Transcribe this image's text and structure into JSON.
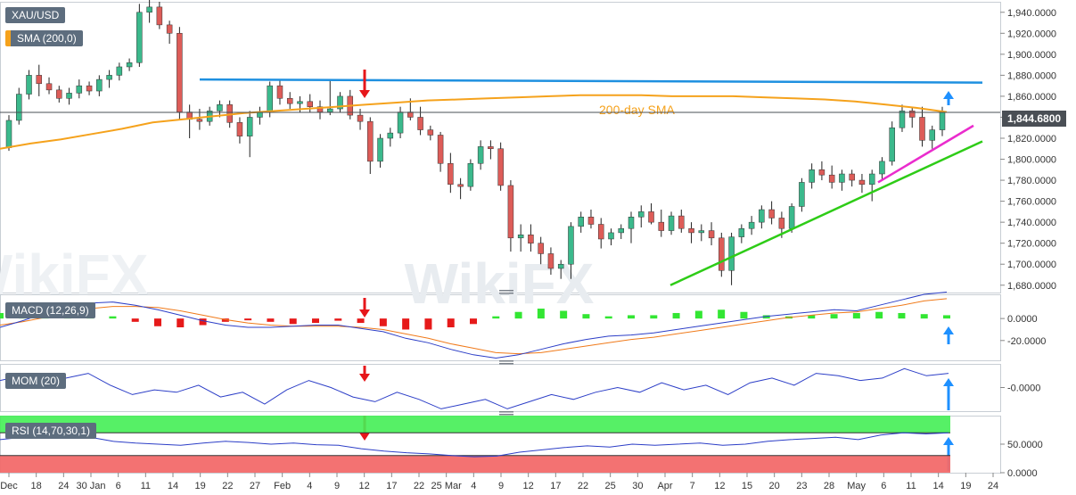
{
  "symbol": "XAU/USD",
  "indicators": {
    "sma": "SMA (200,0)",
    "macd": "MACD (12,26,9)",
    "mom": "MOM (20)",
    "rsi": "RSI (14,70,30,1)"
  },
  "annotations": {
    "sma_label": "200-day SMA",
    "current_price": "1,844.6800"
  },
  "colors": {
    "up": "#3bb98c",
    "down": "#dd5c58",
    "sma": "#f5a21c",
    "resistance": "#1e90e0",
    "support": "#2ecc17",
    "short_support": "#ea2ccd",
    "macd_line": "#2c3ec7",
    "signal_line": "#f07a1a",
    "hist_pos": "#33e633",
    "hist_neg": "#e61a1a",
    "rsi_over": "#44ee55",
    "rsi_under": "#f26a6a",
    "arrow_red": "#e6161a",
    "arrow_blue": "#1e90ff"
  },
  "chart_data": [
    {
      "type": "candlestick",
      "name": "price",
      "y_ticks": [
        "1,940.0000",
        "1,920.0000",
        "1,900.0000",
        "1,880.0000",
        "1,860.0000",
        "1,840.0000",
        "1,820.0000",
        "1,800.0000",
        "1,780.0000",
        "1,760.0000",
        "1,740.0000",
        "1,720.0000",
        "1,700.0000",
        "1,680.0000"
      ],
      "ylim": [
        1673,
        1950
      ],
      "candles": [
        [
          1811,
          1842,
          1808,
          1837
        ],
        [
          1837,
          1868,
          1833,
          1862
        ],
        [
          1862,
          1885,
          1857,
          1880
        ],
        [
          1880,
          1890,
          1860,
          1872
        ],
        [
          1872,
          1878,
          1862,
          1866
        ],
        [
          1866,
          1870,
          1854,
          1858
        ],
        [
          1858,
          1868,
          1852,
          1863
        ],
        [
          1863,
          1876,
          1858,
          1870
        ],
        [
          1870,
          1874,
          1861,
          1865
        ],
        [
          1865,
          1880,
          1860,
          1876
        ],
        [
          1876,
          1885,
          1868,
          1880
        ],
        [
          1880,
          1892,
          1875,
          1888
        ],
        [
          1888,
          1896,
          1884,
          1892
        ],
        [
          1892,
          1948,
          1888,
          1940
        ],
        [
          1940,
          1960,
          1930,
          1945
        ],
        [
          1945,
          1950,
          1924,
          1928
        ],
        [
          1928,
          1932,
          1910,
          1920
        ],
        [
          1920,
          1926,
          1838,
          1845
        ],
        [
          1845,
          1852,
          1820,
          1838
        ],
        [
          1838,
          1848,
          1828,
          1836
        ],
        [
          1836,
          1850,
          1832,
          1846
        ],
        [
          1846,
          1856,
          1840,
          1852
        ],
        [
          1852,
          1856,
          1830,
          1835
        ],
        [
          1835,
          1840,
          1815,
          1822
        ],
        [
          1822,
          1846,
          1802,
          1840
        ],
        [
          1840,
          1850,
          1833,
          1845
        ],
        [
          1845,
          1874,
          1840,
          1870
        ],
        [
          1870,
          1876,
          1852,
          1858
        ],
        [
          1858,
          1864,
          1848,
          1853
        ],
        [
          1853,
          1860,
          1845,
          1855
        ],
        [
          1855,
          1862,
          1845,
          1850
        ],
        [
          1850,
          1856,
          1838,
          1845
        ],
        [
          1845,
          1876,
          1842,
          1848
        ],
        [
          1848,
          1864,
          1845,
          1860
        ],
        [
          1860,
          1866,
          1838,
          1842
        ],
        [
          1842,
          1848,
          1828,
          1836
        ],
        [
          1836,
          1840,
          1786,
          1798
        ],
        [
          1798,
          1824,
          1792,
          1820
        ],
        [
          1820,
          1830,
          1812,
          1825
        ],
        [
          1825,
          1850,
          1820,
          1845
        ],
        [
          1845,
          1858,
          1837,
          1840
        ],
        [
          1840,
          1850,
          1823,
          1828
        ],
        [
          1828,
          1832,
          1818,
          1823
        ],
        [
          1823,
          1826,
          1788,
          1796
        ],
        [
          1796,
          1806,
          1768,
          1776
        ],
        [
          1776,
          1782,
          1762,
          1774
        ],
        [
          1774,
          1800,
          1770,
          1796
        ],
        [
          1796,
          1818,
          1790,
          1812
        ],
        [
          1812,
          1818,
          1800,
          1810
        ],
        [
          1810,
          1816,
          1770,
          1775
        ],
        [
          1775,
          1780,
          1712,
          1725
        ],
        [
          1725,
          1738,
          1712,
          1728
        ],
        [
          1728,
          1738,
          1712,
          1720
        ],
        [
          1720,
          1726,
          1700,
          1710
        ],
        [
          1710,
          1716,
          1690,
          1696
        ],
        [
          1696,
          1704,
          1686,
          1700
        ],
        [
          1700,
          1740,
          1686,
          1736
        ],
        [
          1736,
          1750,
          1730,
          1745
        ],
        [
          1745,
          1752,
          1734,
          1738
        ],
        [
          1738,
          1744,
          1715,
          1724
        ],
        [
          1724,
          1734,
          1718,
          1730
        ],
        [
          1730,
          1738,
          1724,
          1734
        ],
        [
          1734,
          1750,
          1720,
          1745
        ],
        [
          1745,
          1756,
          1735,
          1750
        ],
        [
          1750,
          1758,
          1738,
          1740
        ],
        [
          1740,
          1752,
          1726,
          1732
        ],
        [
          1732,
          1750,
          1728,
          1746
        ],
        [
          1746,
          1752,
          1730,
          1734
        ],
        [
          1734,
          1740,
          1720,
          1730
        ],
        [
          1730,
          1738,
          1722,
          1732
        ],
        [
          1732,
          1740,
          1718,
          1725
        ],
        [
          1725,
          1730,
          1688,
          1694
        ],
        [
          1694,
          1730,
          1680,
          1726
        ],
        [
          1726,
          1738,
          1720,
          1734
        ],
        [
          1734,
          1746,
          1728,
          1740
        ],
        [
          1740,
          1756,
          1734,
          1752
        ],
        [
          1752,
          1760,
          1738,
          1744
        ],
        [
          1744,
          1750,
          1725,
          1734
        ],
        [
          1734,
          1758,
          1730,
          1755
        ],
        [
          1755,
          1782,
          1750,
          1778
        ],
        [
          1778,
          1796,
          1772,
          1790
        ],
        [
          1790,
          1798,
          1780,
          1785
        ],
        [
          1785,
          1794,
          1772,
          1778
        ],
        [
          1778,
          1790,
          1770,
          1786
        ],
        [
          1786,
          1790,
          1774,
          1780
        ],
        [
          1780,
          1786,
          1768,
          1776
        ],
        [
          1776,
          1790,
          1760,
          1786
        ],
        [
          1786,
          1802,
          1780,
          1798
        ],
        [
          1798,
          1836,
          1794,
          1830
        ],
        [
          1830,
          1852,
          1826,
          1846
        ],
        [
          1846,
          1850,
          1830,
          1840
        ],
        [
          1840,
          1850,
          1812,
          1818
        ],
        [
          1818,
          1832,
          1810,
          1828
        ],
        [
          1828,
          1850,
          1822,
          1845
        ]
      ]
    },
    {
      "type": "line",
      "name": "SMA (200,0)",
      "values": [
        1810,
        1815,
        1819,
        1824,
        1829,
        1835,
        1838,
        1841,
        1844,
        1846,
        1848,
        1850,
        1852,
        1854,
        1856,
        1857,
        1858,
        1859,
        1860,
        1861,
        1861,
        1861,
        1860,
        1860,
        1860,
        1859,
        1858,
        1857,
        1855,
        1852,
        1849,
        1845
      ]
    },
    {
      "type": "line",
      "name": "MACD (12,26,9)",
      "y_ticks": [
        "0.0000",
        "-20.0000"
      ],
      "ylim": [
        -38,
        22
      ],
      "macd": [
        -8,
        -2,
        5,
        10,
        14,
        15,
        12,
        8,
        3,
        -2,
        -6,
        -8,
        -8,
        -7,
        -6,
        -6,
        -9,
        -12,
        -18,
        -22,
        -28,
        -33,
        -36,
        -33,
        -28,
        -23,
        -19,
        -16,
        -15,
        -13,
        -10,
        -7,
        -4,
        -1,
        2,
        4,
        6,
        8,
        7,
        12,
        17,
        22,
        24
      ],
      "signal": [
        -6,
        -3,
        1,
        5,
        9,
        11,
        11,
        10,
        7,
        3,
        -1,
        -4,
        -6,
        -7,
        -7,
        -7,
        -8,
        -10,
        -14,
        -18,
        -23,
        -27,
        -31,
        -32,
        -31,
        -28,
        -25,
        -22,
        -19,
        -17,
        -14,
        -11,
        -8,
        -5,
        -2,
        1,
        3,
        5,
        6,
        9,
        12,
        16,
        18
      ],
      "histogram": [
        5,
        6,
        8,
        9,
        5,
        2,
        -3,
        -7,
        -8,
        -6,
        -3,
        -1,
        -3,
        -5,
        -4,
        -2,
        -4,
        -7,
        -10,
        -10,
        -8,
        -5,
        2,
        6,
        9,
        7,
        4,
        2,
        3,
        3,
        5,
        7,
        8,
        6,
        3,
        2,
        3,
        4,
        5,
        6,
        5,
        4,
        3
      ]
    },
    {
      "type": "line",
      "name": "MOM (20)",
      "y_ticks": [
        "-0.0000"
      ],
      "ylim": [
        -100,
        100
      ],
      "values": [
        30,
        50,
        20,
        40,
        60,
        10,
        -30,
        -10,
        -20,
        10,
        -40,
        -20,
        -70,
        -10,
        30,
        0,
        -40,
        -60,
        -20,
        -50,
        -90,
        -70,
        -50,
        -90,
        -60,
        -30,
        -50,
        -20,
        0,
        -20,
        20,
        -10,
        10,
        -30,
        20,
        40,
        10,
        60,
        50,
        30,
        40,
        80,
        50,
        60
      ]
    },
    {
      "type": "line",
      "name": "RSI (14,70,30,1)",
      "y_ticks": [
        "50.0000",
        "0.0000"
      ],
      "ylim": [
        0,
        100
      ],
      "levels": [
        30,
        70
      ],
      "values": [
        58,
        62,
        70,
        66,
        62,
        55,
        52,
        50,
        48,
        52,
        55,
        53,
        50,
        52,
        49,
        48,
        42,
        38,
        35,
        33,
        30,
        28,
        29,
        36,
        40,
        44,
        47,
        45,
        50,
        48,
        50,
        52,
        48,
        50,
        55,
        58,
        60,
        62,
        58,
        66,
        70,
        68,
        70
      ]
    }
  ],
  "x_ticks": [
    "Dec",
    "18",
    "24",
    "30 Jan",
    "6",
    "11",
    "14",
    "19",
    "22",
    "27",
    "Feb",
    "4",
    "9",
    "12",
    "17",
    "22",
    "25 Mar",
    "4",
    "9",
    "12",
    "17",
    "22",
    "25",
    "30",
    "Apr",
    "7",
    "12",
    "15",
    "20",
    "23",
    "28",
    "May",
    "6",
    "11",
    "14",
    "19",
    "24"
  ]
}
